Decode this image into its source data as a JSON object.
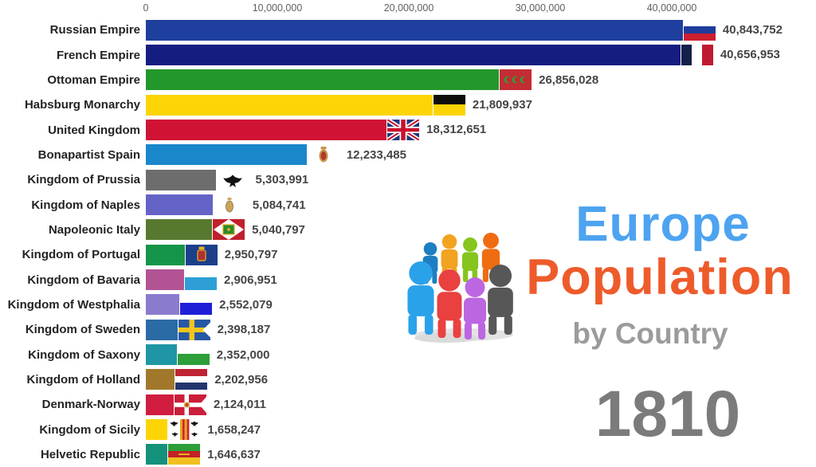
{
  "title_block": {
    "line1": "Europe",
    "line2": "Population",
    "line3": "by Country",
    "year": "1810",
    "line1_color": "#4da3f0",
    "line2_color": "#ee5b2b",
    "line3_color": "#9b9b9b",
    "year_color": "#7b7b7b"
  },
  "chart_data": {
    "type": "bar",
    "orientation": "horizontal",
    "title": "Europe Population by Country",
    "year_shown": "1810",
    "x_axis": {
      "ticks": [
        "0",
        "10,000,000",
        "20,000,000",
        "30,000,000",
        "40,000,000"
      ],
      "tick_values": [
        0,
        10000000,
        20000000,
        30000000,
        40000000
      ],
      "range": [
        0,
        40000000
      ],
      "grid": false
    },
    "legend": "none",
    "categories": [
      "Russian Empire",
      "French Empire",
      "Ottoman Empire",
      "Habsburg Monarchy",
      "United Kingdom",
      "Bonapartist Spain",
      "Kingdom of Prussia",
      "Kingdom of Naples",
      "Napoleonic Italy",
      "Kingdom of Portugal",
      "Kingdom of Bavaria",
      "Kingdom of Westphalia",
      "Kingdom of Sweden",
      "Kingdom of Saxony",
      "Kingdom of Holland",
      "Denmark-Norway",
      "Kingdom of Sicily",
      "Helvetic Republic"
    ],
    "values": [
      40843752,
      40656953,
      26856028,
      21809937,
      18312651,
      12233485,
      5303991,
      5084741,
      5040797,
      2950797,
      2906951,
      2552079,
      2398187,
      2352000,
      2202956,
      2124011,
      1658247,
      1646637
    ],
    "value_labels": [
      "40,843,752",
      "40,656,953",
      "26,856,028",
      "21,809,937",
      "18,312,651",
      "12,233,485",
      "5,303,991",
      "5,084,741",
      "5,040,797",
      "2,950,797",
      "2,906,951",
      "2,552,079",
      "2,398,187",
      "2,352,000",
      "2,202,956",
      "2,124,011",
      "1,658,247",
      "1,646,637"
    ],
    "bar_colors": [
      "#1e3f9e",
      "#161d80",
      "#23972b",
      "#fdd506",
      "#d01334",
      "#1b87cb",
      "#6d6d6d",
      "#6563c6",
      "#57792f",
      "#149549",
      "#b25394",
      "#8a7bce",
      "#2a6ba6",
      "#1f96a5",
      "#a1782b",
      "#d01d40",
      "#fdd506",
      "#14917b"
    ],
    "flag_icons": [
      "russia-flag",
      "france-flag",
      "ottoman-flag",
      "habsburg-flag",
      "uk-flag",
      "spain-crest",
      "prussia-eagle",
      "naples-crest",
      "italy-napoleonic-flag",
      "portugal-flag",
      "bavaria-flag",
      "westphalia-flag",
      "sweden-flag",
      "saxony-flag",
      "holland-flag",
      "denmark-flag",
      "sicily-flag",
      "helvetic-flag"
    ]
  },
  "people_icon": {
    "name": "people-group-icon",
    "figure_colors": [
      "#1d7fc1",
      "#f2a31f",
      "#86c51d",
      "#ef6c12",
      "#2aa2ea",
      "#ea4040",
      "#bd66e2",
      "#575757"
    ]
  }
}
